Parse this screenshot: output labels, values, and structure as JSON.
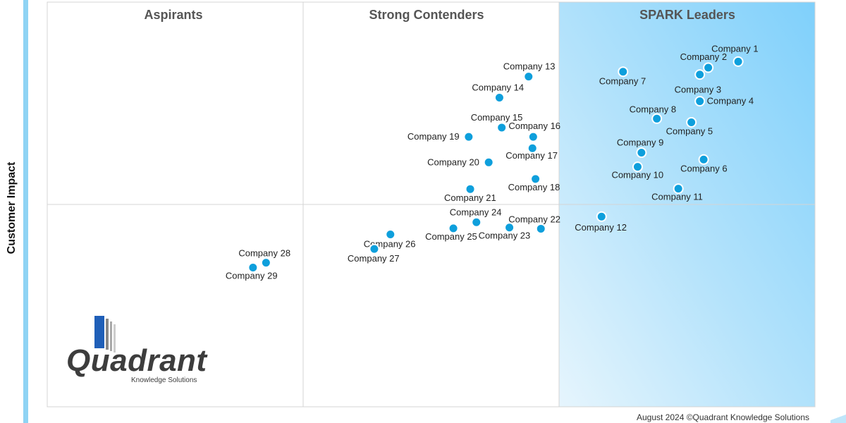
{
  "axis": {
    "y_title": "Customer Impact"
  },
  "footer": {
    "text": "August 2024 ©Quadrant Knowledge Solutions"
  },
  "logo": {
    "name": "Quadrant",
    "tagline": "Knowledge Solutions"
  },
  "colors": {
    "point": "#0e9fdc",
    "leaders_fill": "#7fd0fb",
    "grid": "#d4d4d4",
    "left_bar": "#8fd3f4"
  },
  "chart_data": {
    "type": "scatter",
    "title": "",
    "xlabel": "",
    "ylabel": "Customer Impact",
    "xlim": [
      0,
      100
    ],
    "ylim": [
      0,
      100
    ],
    "grid": false,
    "quadrants": [
      "Aspirants",
      "Strong Contenders",
      "SPARK Leaders"
    ],
    "points": [
      {
        "label": "Company 1",
        "x": 90.0,
        "y": 85.3
      },
      {
        "label": "Company 2",
        "x": 86.1,
        "y": 83.8
      },
      {
        "label": "Company 3",
        "x": 85.0,
        "y": 82.1
      },
      {
        "label": "Company 4",
        "x": 85.0,
        "y": 75.5
      },
      {
        "label": "Company 5",
        "x": 83.9,
        "y": 70.3
      },
      {
        "label": "Company 6",
        "x": 85.5,
        "y": 61.1
      },
      {
        "label": "Company 7",
        "x": 75.0,
        "y": 82.8
      },
      {
        "label": "Company 8",
        "x": 79.4,
        "y": 71.2
      },
      {
        "label": "Company 9",
        "x": 77.4,
        "y": 62.8
      },
      {
        "label": "Company 10",
        "x": 76.9,
        "y": 59.3
      },
      {
        "label": "Company 11",
        "x": 82.2,
        "y": 53.9
      },
      {
        "label": "Company 12",
        "x": 72.2,
        "y": 47.0
      },
      {
        "label": "Company 13",
        "x": 62.7,
        "y": 81.6
      },
      {
        "label": "Company 14",
        "x": 58.9,
        "y": 76.4
      },
      {
        "label": "Company 15",
        "x": 59.2,
        "y": 69.0
      },
      {
        "label": "Company 16",
        "x": 63.3,
        "y": 66.7
      },
      {
        "label": "Company 17",
        "x": 63.2,
        "y": 63.9
      },
      {
        "label": "Company 18",
        "x": 63.6,
        "y": 56.3
      },
      {
        "label": "Company 19",
        "x": 54.9,
        "y": 66.7
      },
      {
        "label": "Company 20",
        "x": 57.5,
        "y": 60.4
      },
      {
        "label": "Company 21",
        "x": 55.1,
        "y": 53.8
      },
      {
        "label": "Company 22",
        "x": 64.3,
        "y": 44.0
      },
      {
        "label": "Company 23",
        "x": 60.2,
        "y": 44.3
      },
      {
        "label": "Company 24",
        "x": 55.9,
        "y": 45.6
      },
      {
        "label": "Company 25",
        "x": 52.9,
        "y": 44.1
      },
      {
        "label": "Company 26",
        "x": 44.7,
        "y": 42.6
      },
      {
        "label": "Company 27",
        "x": 42.6,
        "y": 39.0
      },
      {
        "label": "Company 28",
        "x": 28.5,
        "y": 35.6
      },
      {
        "label": "Company 29",
        "x": 26.8,
        "y": 34.4
      }
    ]
  }
}
